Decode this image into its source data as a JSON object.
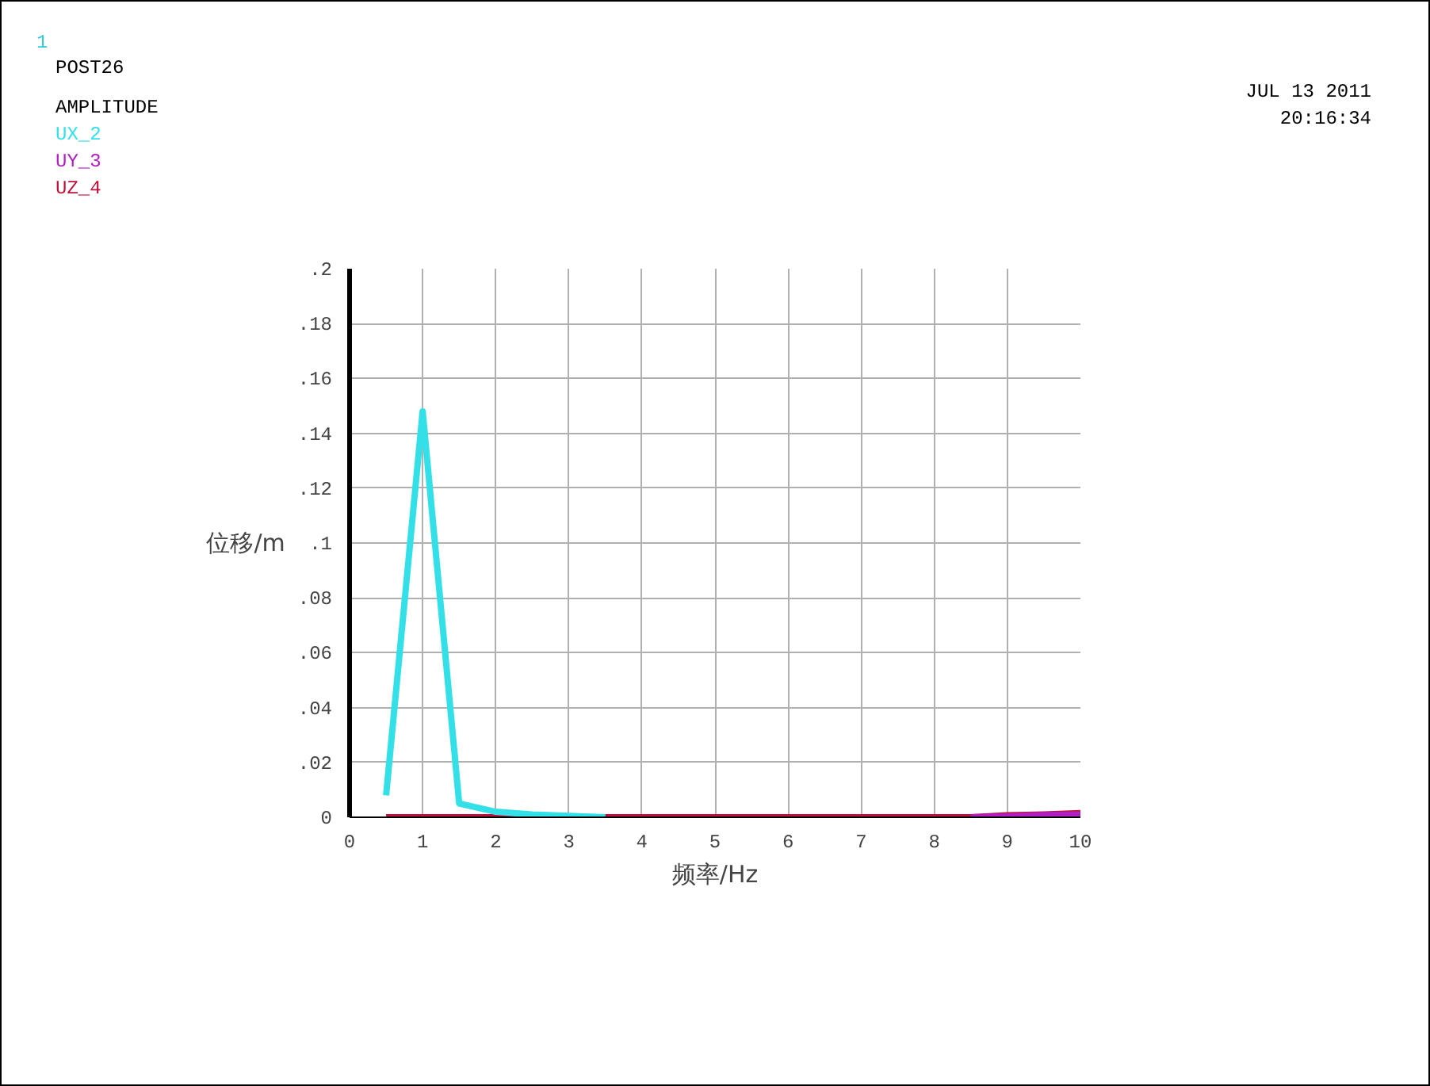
{
  "chart_data": {
    "type": "line",
    "xlabel": "频率/Hz",
    "ylabel": "位移/m",
    "legend_title": "AMPLITUDE",
    "x": [
      0.5,
      1,
      1.5,
      2,
      2.5,
      3,
      3.5,
      4,
      4.5,
      5,
      5.5,
      6,
      6.5,
      7,
      7.5,
      8,
      8.5,
      9,
      9.5,
      10
    ],
    "series": [
      {
        "name": "UX_2",
        "color": "#33e0e8",
        "values": [
          0.008,
          0.148,
          0.005,
          0.002,
          0.001,
          0.0005,
          0,
          null,
          null,
          null,
          null,
          null,
          null,
          null,
          null,
          null,
          null,
          null,
          null,
          null
        ]
      },
      {
        "name": "UY_3",
        "color": "#b020c0",
        "values": [
          null,
          null,
          null,
          null,
          null,
          null,
          null,
          null,
          null,
          null,
          null,
          null,
          null,
          null,
          null,
          null,
          0,
          0.0003,
          0.0008,
          0.001
        ]
      },
      {
        "name": "UZ_4",
        "color": "#c0103a",
        "values": [
          0,
          0,
          0,
          0,
          0,
          0,
          0,
          0,
          0,
          0,
          0,
          0,
          0,
          0,
          0,
          0,
          0,
          0.0007,
          0.001,
          0.0015
        ]
      }
    ],
    "xlim": [
      0,
      10
    ],
    "xticks": [
      0,
      1,
      2,
      3,
      4,
      5,
      6,
      7,
      8,
      9,
      10
    ],
    "ylim": [
      0,
      0.2
    ],
    "yticks": [
      {
        "value": 0,
        "label": "0"
      },
      {
        "value": 0.02,
        "label": ".02"
      },
      {
        "value": 0.04,
        "label": ".04"
      },
      {
        "value": 0.06,
        "label": ".06"
      },
      {
        "value": 0.08,
        "label": ".08"
      },
      {
        "value": 0.1,
        "label": ".1"
      },
      {
        "value": 0.12,
        "label": ".12"
      },
      {
        "value": 0.14,
        "label": ".14"
      },
      {
        "value": 0.16,
        "label": ".16"
      },
      {
        "value": 0.18,
        "label": ".18"
      },
      {
        "value": 0.2,
        "label": ".2"
      }
    ],
    "grid": true,
    "line_style": "solid",
    "marker": "none",
    "annotations": [
      "1",
      "POST26",
      "JUL 13 2011",
      "20:16:34"
    ]
  }
}
